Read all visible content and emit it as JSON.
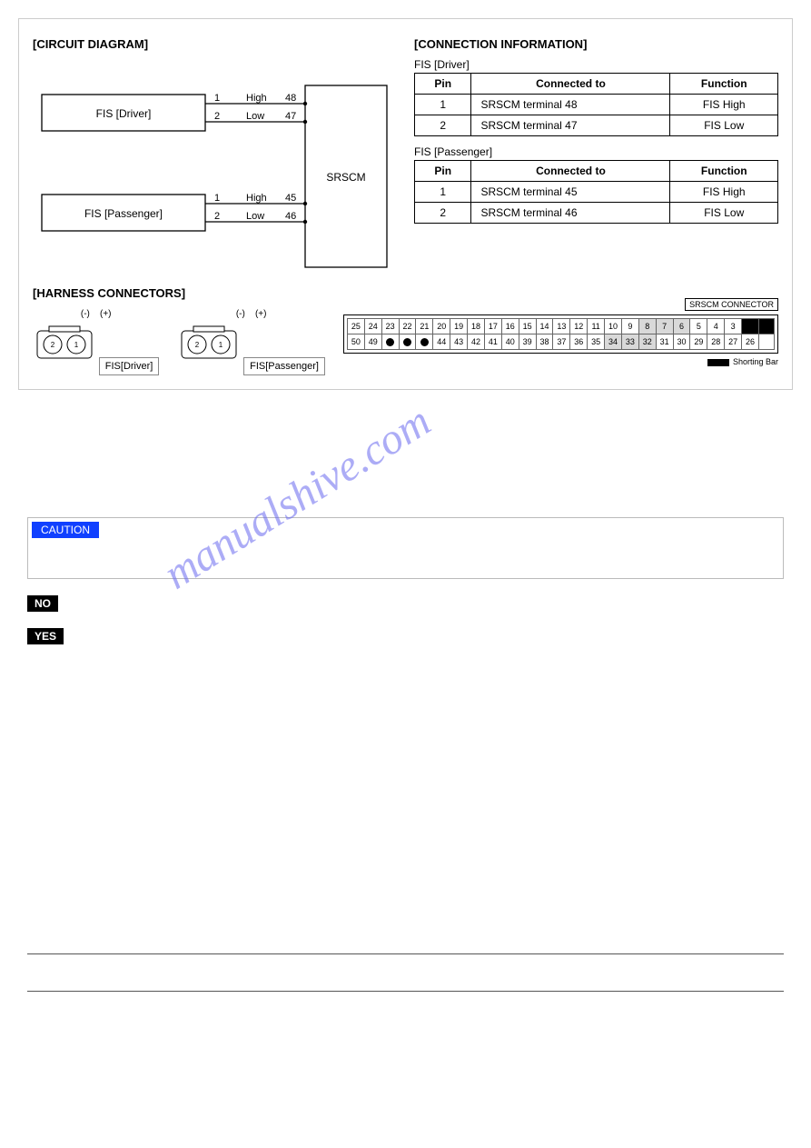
{
  "sections": {
    "circuit_title": "[CIRCUIT DIAGRAM]",
    "connection_title": "[CONNECTION INFORMATION]",
    "harness_title": "[HARNESS CONNECTORS]"
  },
  "circuit": {
    "box_driver": "FIS [Driver]",
    "box_passenger": "FIS [Passenger]",
    "central_box": "SRSCM",
    "driver_lines": [
      {
        "pin": "1",
        "label": "High",
        "term": "48"
      },
      {
        "pin": "2",
        "label": "Low",
        "term": "47"
      }
    ],
    "passenger_lines": [
      {
        "pin": "1",
        "label": "High",
        "term": "45"
      },
      {
        "pin": "2",
        "label": "Low",
        "term": "46"
      }
    ],
    "colors": {
      "line": "#000000",
      "box_fill": "#ffffff",
      "text": "#000000"
    },
    "stroke_width": 1.3
  },
  "conn_tables": {
    "driver": {
      "label": "FIS [Driver]",
      "cols": [
        "Pin",
        "Connected to",
        "Function"
      ],
      "rows": [
        [
          "1",
          "SRSCM terminal 48",
          "FIS High"
        ],
        [
          "2",
          "SRSCM terminal 47",
          "FIS Low"
        ]
      ]
    },
    "passenger": {
      "label": "FIS [Passenger]",
      "cols": [
        "Pin",
        "Connected to",
        "Function"
      ],
      "rows": [
        [
          "1",
          "SRSCM terminal 45",
          "FIS High"
        ],
        [
          "2",
          "SRSCM terminal 46",
          "FIS Low"
        ]
      ]
    }
  },
  "harness": {
    "fis_neg": "(-)",
    "fis_pos": "(+)",
    "fis_pin2": "2",
    "fis_pin1": "1",
    "fis_driver_label": "FIS[Driver]",
    "fis_passenger_label": "FIS[Passenger]",
    "srscm_connector_label": "SRSCM CONNECTOR",
    "shorting_bar_label": "Shorting Bar",
    "row1": [
      "25",
      "24",
      "23",
      "22",
      "21",
      "20",
      "19",
      "18",
      "17",
      "16",
      "15",
      "14",
      "13",
      "12",
      "11",
      "10",
      "9",
      "8",
      "7",
      "6",
      "5",
      "4",
      "3",
      "",
      ""
    ],
    "row2": [
      "50",
      "49",
      "",
      "",
      "",
      "44",
      "43",
      "42",
      "41",
      "40",
      "39",
      "38",
      "37",
      "36",
      "35",
      "34",
      "33",
      "32",
      "31",
      "30",
      "29",
      "28",
      "27",
      "26",
      ""
    ],
    "row1_grey_idx": [
      17,
      18,
      19
    ],
    "row1_black_idx": [
      23,
      24
    ],
    "row2_dot_idx": [
      2,
      3,
      4
    ],
    "row2_grey_idx": [
      15,
      16,
      17
    ]
  },
  "caution_label": "CAUTION",
  "tag_no": "NO",
  "tag_yes": "YES",
  "watermark_text": "manualshive.com",
  "colors": {
    "caution_bg": "#1040ff",
    "watermark": "#6a6af0",
    "tag_bg": "#000000",
    "border": "#cccccc",
    "grey_cell": "#d9d9d9"
  }
}
